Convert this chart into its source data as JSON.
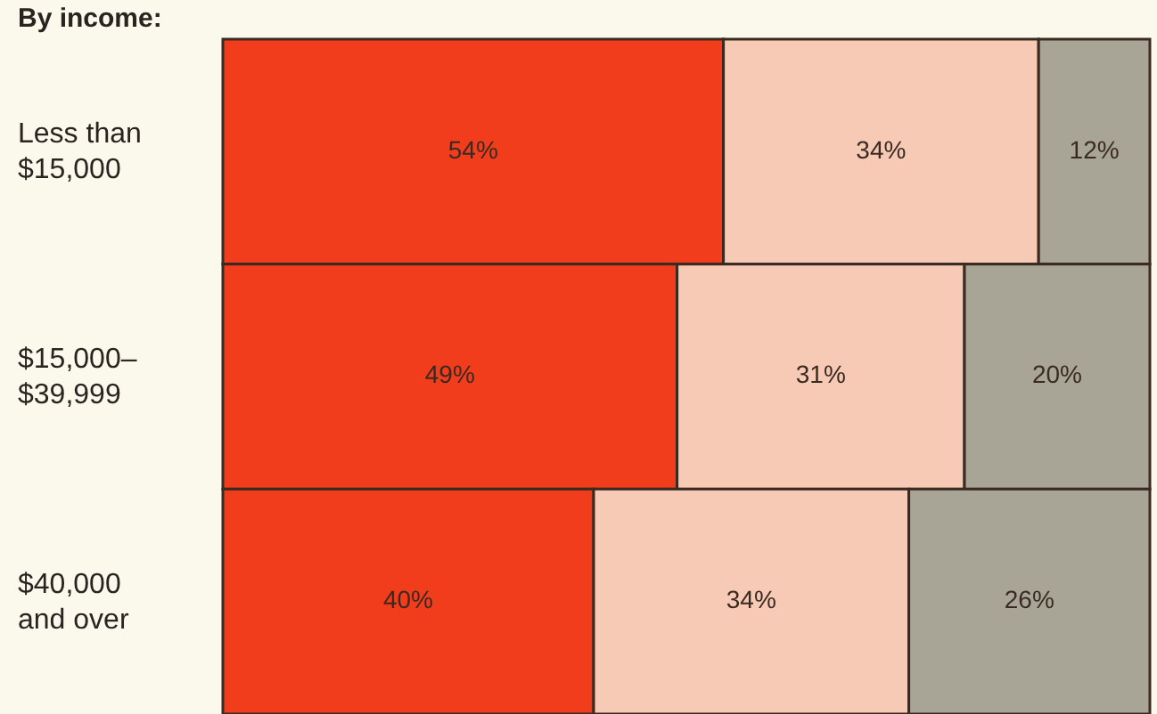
{
  "chart_data": {
    "type": "bar",
    "orientation": "horizontal",
    "stacked": true,
    "title": "By income:",
    "categories": [
      "Less than\n$15,000",
      "$15,000–\n$39,999",
      "$40,000\nand over"
    ],
    "xlim": [
      0,
      100
    ],
    "series": [
      {
        "color": "#f23d1c",
        "values": [
          54,
          49,
          40
        ],
        "value_labels": [
          "54%",
          "49%",
          "40%"
        ]
      },
      {
        "color": "#f6cab5",
        "values": [
          34,
          31,
          34
        ],
        "value_labels": [
          "34%",
          "31%",
          "34%"
        ]
      },
      {
        "color": "#a9a596",
        "values": [
          12,
          20,
          26
        ],
        "value_labels": [
          "12%",
          "20%",
          "26%"
        ]
      }
    ]
  }
}
